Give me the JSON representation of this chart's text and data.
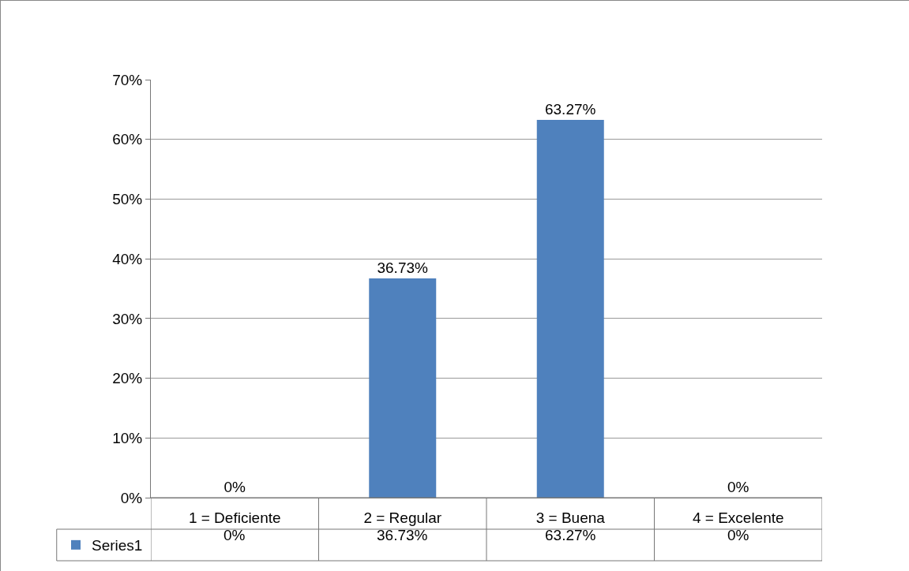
{
  "chart_data": {
    "type": "bar",
    "categories": [
      "1 = Deficiente",
      "2 = Regular",
      "3 = Buena",
      "4 = Excelente"
    ],
    "series": [
      {
        "name": "Series1",
        "color": "#4f81bd",
        "values": [
          0,
          36.73,
          63.27,
          0
        ],
        "value_labels": [
          "0%",
          "36.73%",
          "63.27%",
          "0%"
        ]
      }
    ],
    "ylim": [
      0,
      70
    ],
    "yticks": [
      {
        "value": 0,
        "label": "0%"
      },
      {
        "value": 10,
        "label": "10%"
      },
      {
        "value": 20,
        "label": "20%"
      },
      {
        "value": 30,
        "label": "30%"
      },
      {
        "value": 40,
        "label": "40%"
      },
      {
        "value": 50,
        "label": "50%"
      },
      {
        "value": 60,
        "label": "60%"
      },
      {
        "value": 70,
        "label": "70%"
      }
    ],
    "grid": "y",
    "legend": "bottom left"
  }
}
